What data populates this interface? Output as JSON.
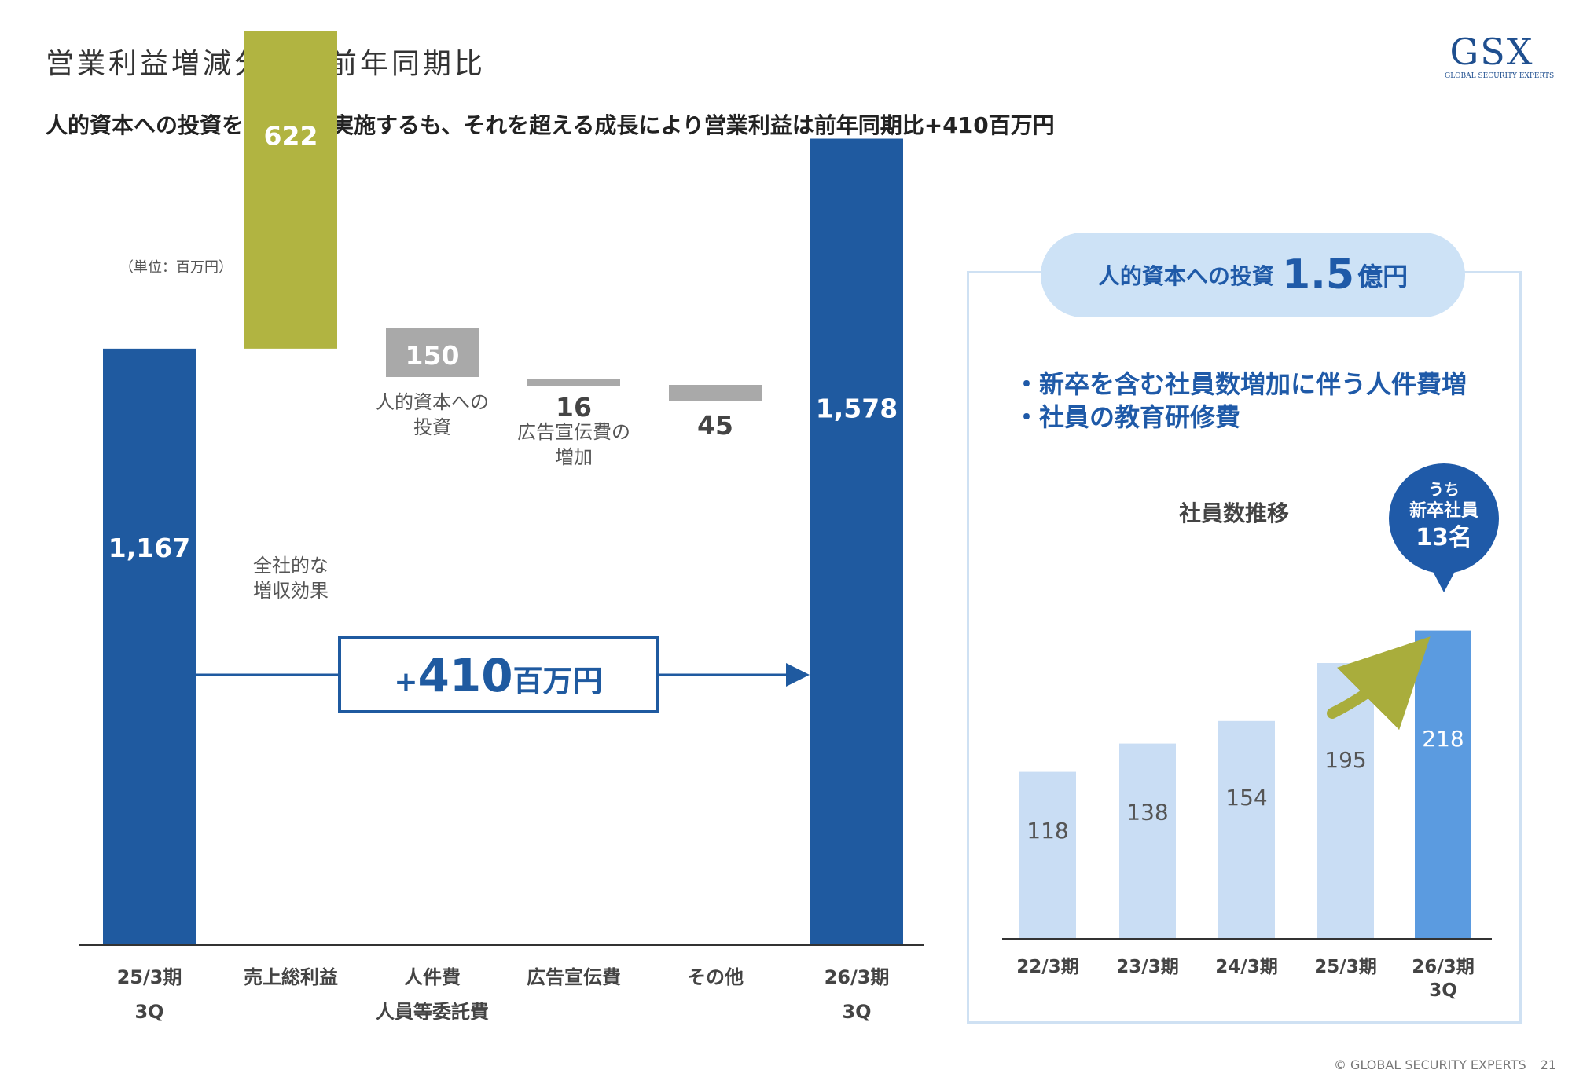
{
  "header": {
    "title": "営業利益増減分析　前年同期比",
    "headline": "人的資本への投資を積極的に実施するも、それを超える成長により営業利益は前年同期比+410百万円",
    "logo_text": "GSX",
    "logo_subtext": "GLOBAL SECURITY EXPERTS"
  },
  "unit_label": "（単位：百万円）",
  "chart_data": [
    {
      "type": "waterfall",
      "categories": [
        "25/3期 3Q",
        "売上総利益",
        "人件費 人員等委託費",
        "広告宣伝費",
        "その他",
        "26/3期 3Q"
      ],
      "category_lines": [
        [
          "25/3期",
          "3Q"
        ],
        [
          "売上総利益"
        ],
        [
          "人件費",
          "人員等委託費"
        ],
        [
          "広告宣伝費"
        ],
        [
          "その他"
        ],
        [
          "26/3期",
          "3Q"
        ]
      ],
      "values": [
        1167,
        622,
        -150,
        -16,
        -45,
        1578
      ],
      "value_labels": [
        "1,167",
        "622",
        "150",
        "16",
        "45",
        "1,578"
      ],
      "kinds": [
        "total",
        "increase",
        "decrease",
        "decrease",
        "decrease",
        "total"
      ],
      "annotations": [
        "",
        "全社的な\n増収効果",
        "人的資本への\n投資",
        "広告宣伝費の\n増加",
        "",
        ""
      ],
      "change_label": {
        "sign": "+",
        "value": "410",
        "unit": "百万円"
      },
      "colors": {
        "total": "#1f5aa0",
        "increase": "#b1b441",
        "decrease": "#a9a9a9"
      }
    },
    {
      "type": "bar",
      "title": "社員数推移",
      "categories": [
        "22/3期",
        "23/3期",
        "24/3期",
        "25/3期",
        "26/3期 3Q"
      ],
      "category_lines": [
        [
          "22/3期"
        ],
        [
          "23/3期"
        ],
        [
          "24/3期"
        ],
        [
          "25/3期"
        ],
        [
          "26/3期",
          "3Q"
        ]
      ],
      "values": [
        118,
        138,
        154,
        195,
        218
      ],
      "colors": {
        "base": "#c9ddf4",
        "highlight": "#5b9be0"
      }
    }
  ],
  "investment": {
    "label": "人的資本への投資",
    "amount": "1.5",
    "unit": "億円",
    "bullets": [
      "・新卒を含む社員数増加に伴う人件費増",
      "・社員の教育研修費"
    ]
  },
  "callout": {
    "line1": "うち",
    "line2": "新卒社員",
    "line3": "13名"
  },
  "footer": {
    "copyright": "© GLOBAL SECURITY EXPERTS",
    "page": "21"
  }
}
